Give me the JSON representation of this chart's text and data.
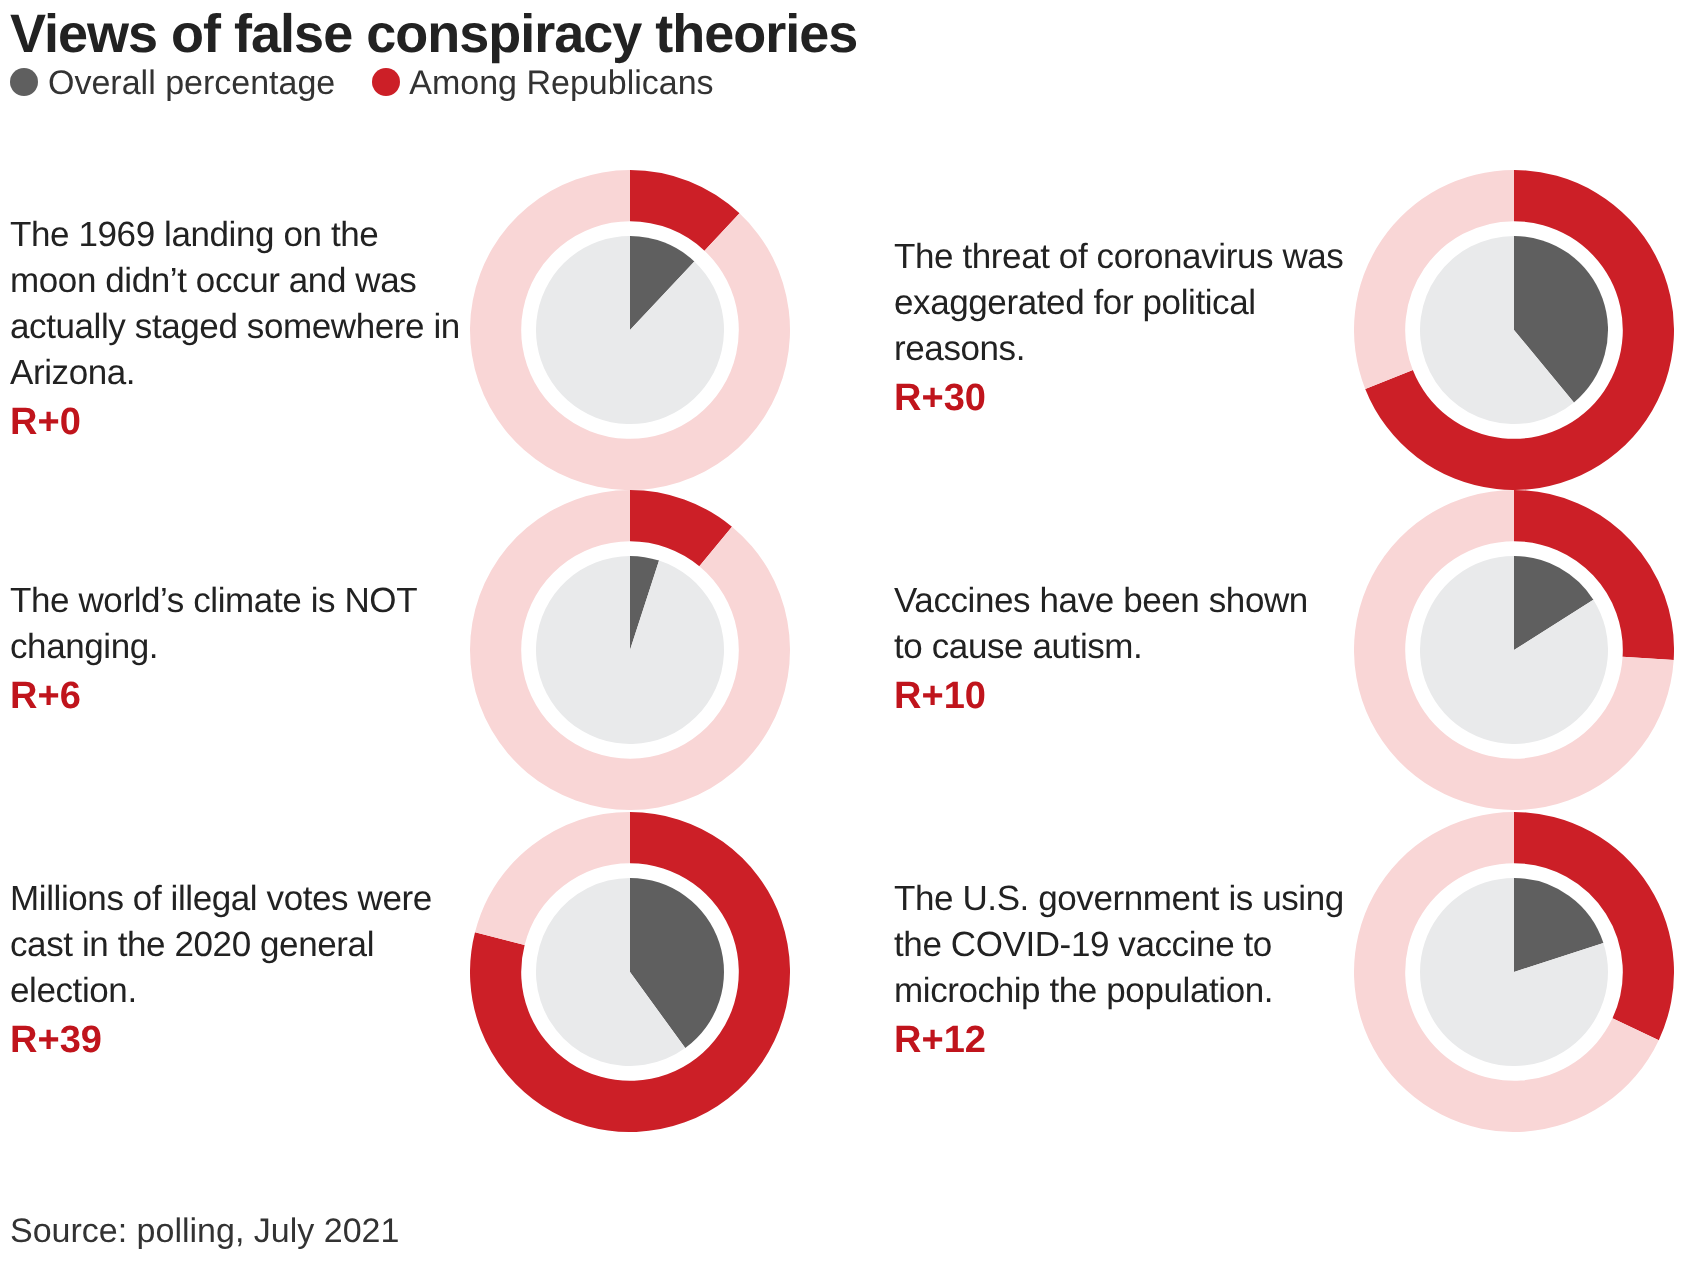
{
  "chart_data": [
    {
      "type": "donut",
      "title": "Views of false conspiracy theories",
      "subtitle": "The 1969 landing on the moon didn’t occur and was actually staged somewhere in Arizona.",
      "legend": "top left",
      "categories": [
        null,
        null
      ],
      "annotations": [
        "R+0"
      ],
      "series": [
        {
          "name": "Overall percentage",
          "color": "#5f5f5f",
          "colors": [
            "#5f5f5f",
            "#e9eaeb"
          ],
          "values": [
            12,
            88
          ]
        },
        {
          "name": "Among Republicans",
          "color": "#cc1f27",
          "colors": [
            "#cc1f27",
            "#f9d6d6"
          ],
          "values": [
            12,
            88
          ]
        }
      ]
    },
    {
      "type": "donut",
      "subtitle": "The threat of coronavirus was exaggerated for political reasons.",
      "categories": [
        null,
        null
      ],
      "annotations": [
        "R+30"
      ],
      "series": [
        {
          "colors": [
            "#5f5f5f",
            "#e9eaeb"
          ],
          "values": [
            39,
            61
          ]
        },
        {
          "colors": [
            "#cc1f27",
            "#f9d6d6"
          ],
          "values": [
            69,
            31
          ]
        }
      ]
    },
    {
      "type": "donut",
      "subtitle": "The world’s climate is NOT changing.",
      "categories": [
        null,
        null
      ],
      "annotations": [
        "R+6"
      ],
      "series": [
        {
          "colors": [
            "#5f5f5f",
            "#e9eaeb"
          ],
          "values": [
            5,
            95
          ]
        },
        {
          "colors": [
            "#cc1f27",
            "#f9d6d6"
          ],
          "values": [
            11,
            89
          ]
        }
      ]
    },
    {
      "type": "donut",
      "subtitle": "Vaccines have been shown to cause autism.",
      "categories": [
        null,
        null
      ],
      "annotations": [
        "R+10"
      ],
      "series": [
        {
          "colors": [
            "#5f5f5f",
            "#e9eaeb"
          ],
          "values": [
            16,
            84
          ]
        },
        {
          "colors": [
            "#cc1f27",
            "#f9d6d6"
          ],
          "values": [
            26,
            74
          ]
        }
      ]
    },
    {
      "type": "donut",
      "subtitle": "Millions of illegal votes were cast in the 2020 general election.",
      "categories": [
        null,
        null
      ],
      "annotations": [
        "R+39"
      ],
      "series": [
        {
          "colors": [
            "#5f5f5f",
            "#e9eaeb"
          ],
          "values": [
            40,
            60
          ]
        },
        {
          "colors": [
            "#cc1f27",
            "#f9d6d6"
          ],
          "values": [
            79,
            21
          ]
        }
      ]
    },
    {
      "type": "donut",
      "subtitle": "The U.S. government is using the COVID-19 vaccine to microchip the population.",
      "categories": [
        null,
        null
      ],
      "annotations": [
        "R+12",
        "Source: polling, July 2021"
      ],
      "series": [
        {
          "colors": [
            "#5f5f5f",
            "#e9eaeb"
          ],
          "values": [
            20,
            80
          ]
        },
        {
          "colors": [
            "#cc1f27",
            "#f9d6d6"
          ],
          "values": [
            32,
            68
          ]
        }
      ]
    }
  ]
}
